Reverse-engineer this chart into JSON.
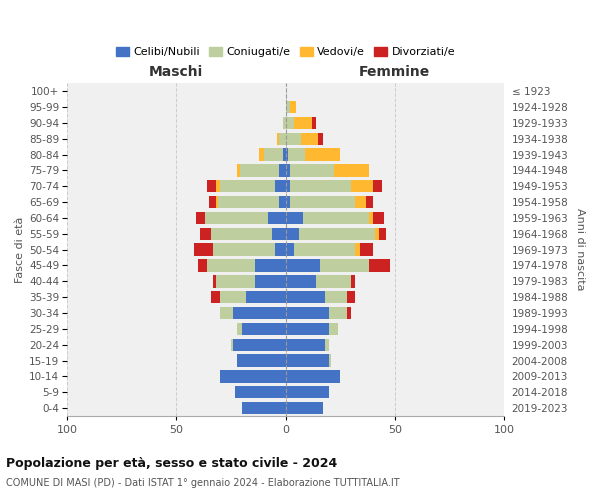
{
  "age_groups": [
    "0-4",
    "5-9",
    "10-14",
    "15-19",
    "20-24",
    "25-29",
    "30-34",
    "35-39",
    "40-44",
    "45-49",
    "50-54",
    "55-59",
    "60-64",
    "65-69",
    "70-74",
    "75-79",
    "80-84",
    "85-89",
    "90-94",
    "95-99",
    "100+"
  ],
  "birth_years": [
    "2019-2023",
    "2014-2018",
    "2009-2013",
    "2004-2008",
    "1999-2003",
    "1994-1998",
    "1989-1993",
    "1984-1988",
    "1979-1983",
    "1974-1978",
    "1969-1973",
    "1964-1968",
    "1959-1963",
    "1954-1958",
    "1949-1953",
    "1944-1948",
    "1939-1943",
    "1934-1938",
    "1929-1933",
    "1924-1928",
    "≤ 1923"
  ],
  "colors": {
    "celibe": "#4472C4",
    "coniugato": "#BFCE9E",
    "vedovo": "#FFB830",
    "divorziato": "#CC2222"
  },
  "maschi": {
    "celibe": [
      20,
      23,
      30,
      22,
      24,
      20,
      24,
      18,
      14,
      14,
      5,
      6,
      8,
      3,
      5,
      3,
      1,
      0,
      0,
      0,
      0
    ],
    "coniugato": [
      0,
      0,
      0,
      0,
      1,
      2,
      6,
      12,
      18,
      22,
      28,
      28,
      29,
      28,
      25,
      18,
      9,
      3,
      1,
      0,
      0
    ],
    "vedovo": [
      0,
      0,
      0,
      0,
      0,
      0,
      0,
      0,
      0,
      0,
      0,
      0,
      0,
      1,
      2,
      1,
      2,
      1,
      0,
      0,
      0
    ],
    "divorziato": [
      0,
      0,
      0,
      0,
      0,
      0,
      0,
      4,
      1,
      4,
      9,
      5,
      4,
      3,
      4,
      0,
      0,
      0,
      0,
      0,
      0
    ]
  },
  "femmine": {
    "nubile": [
      17,
      20,
      25,
      20,
      18,
      20,
      20,
      18,
      14,
      16,
      4,
      6,
      8,
      2,
      2,
      2,
      1,
      0,
      0,
      0,
      0
    ],
    "coniugata": [
      0,
      0,
      0,
      1,
      2,
      4,
      8,
      10,
      16,
      22,
      28,
      35,
      30,
      30,
      28,
      20,
      8,
      7,
      4,
      2,
      0
    ],
    "vedova": [
      0,
      0,
      0,
      0,
      0,
      0,
      0,
      0,
      0,
      0,
      2,
      2,
      2,
      5,
      10,
      16,
      16,
      8,
      8,
      3,
      0
    ],
    "divorziata": [
      0,
      0,
      0,
      0,
      0,
      0,
      2,
      4,
      2,
      10,
      6,
      3,
      5,
      3,
      4,
      0,
      0,
      2,
      2,
      0,
      0
    ]
  },
  "xlim": 100,
  "title": "Popolazione per età, sesso e stato civile - 2024",
  "subtitle": "COMUNE DI MASI (PD) - Dati ISTAT 1° gennaio 2024 - Elaborazione TUTTITALIA.IT",
  "ylabel_left": "Fasce di età",
  "ylabel_right": "Anni di nascita",
  "xlabel_left": "Maschi",
  "xlabel_right": "Femmine",
  "legend_labels": [
    "Celibi/Nubili",
    "Coniugati/e",
    "Vedovi/e",
    "Divorziati/e"
  ],
  "bg_color": "#ffffff",
  "plot_bg_color": "#f0f0f0",
  "grid_color": "#cccccc"
}
